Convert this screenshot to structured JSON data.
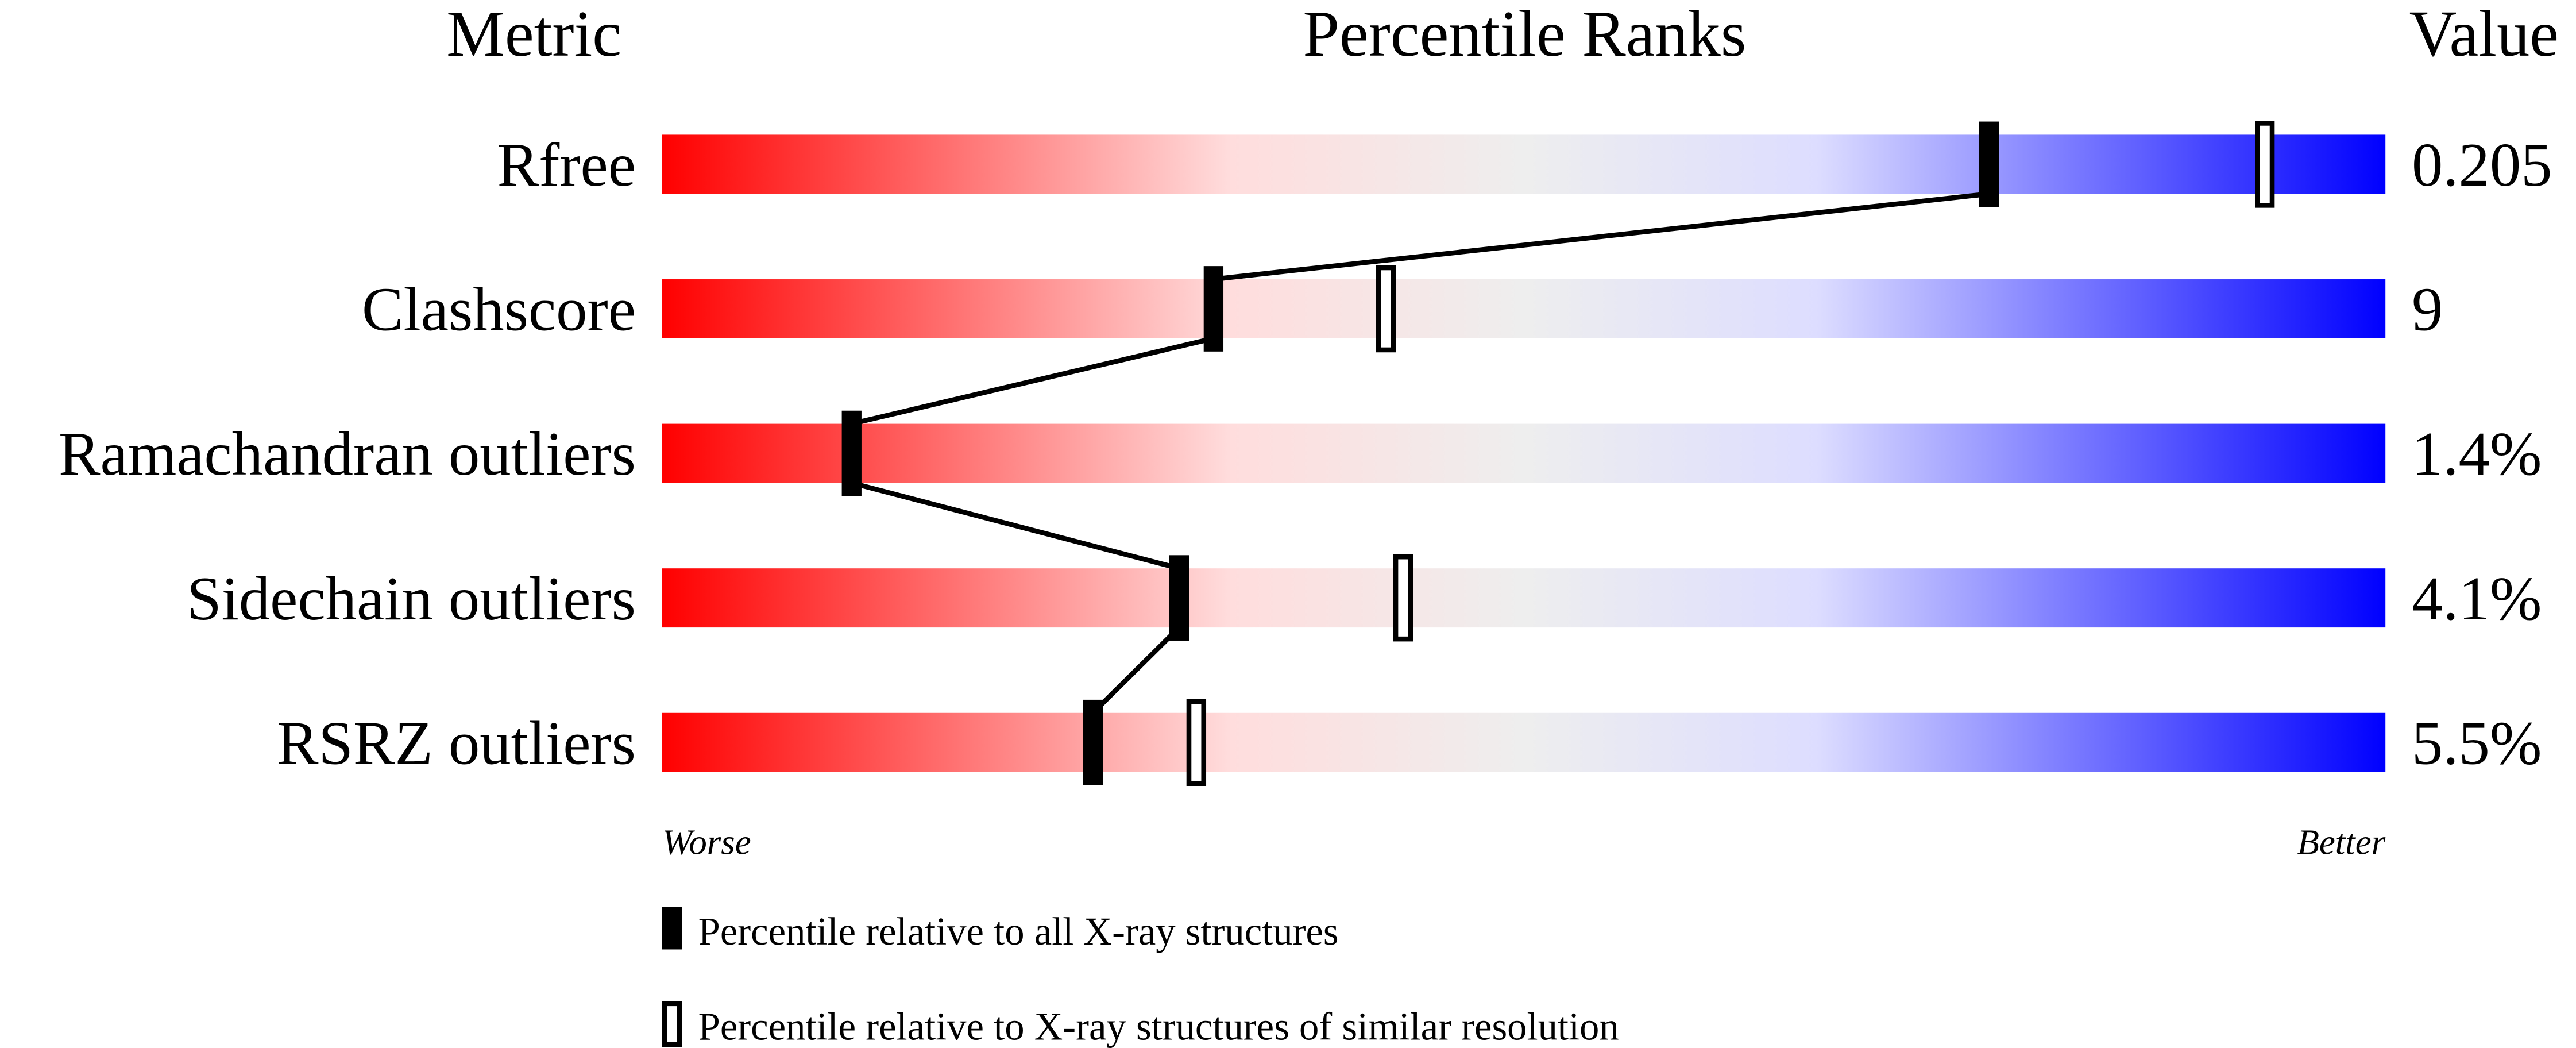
{
  "chart_data": {
    "type": "bar",
    "headers": {
      "metric": "Metric",
      "percentile": "Percentile Ranks",
      "value": "Value"
    },
    "xlim": [
      0,
      100
    ],
    "axis_labels": {
      "left": "Worse",
      "right": "Better"
    },
    "gradient_colors": [
      "#ff0000",
      "#ffdddd",
      "#eeeeee",
      "#ddddff",
      "#0000ff"
    ],
    "rows": [
      {
        "metric": "Rfree",
        "value": "0.205",
        "percentile_all": 77,
        "percentile_similar": 93
      },
      {
        "metric": "Clashscore",
        "value": "9",
        "percentile_all": 32,
        "percentile_similar": 42
      },
      {
        "metric": "Ramachandran outliers",
        "value": "1.4%",
        "percentile_all": 11,
        "percentile_similar": null
      },
      {
        "metric": "Sidechain outliers",
        "value": "4.1%",
        "percentile_all": 30,
        "percentile_similar": 43
      },
      {
        "metric": "RSRZ outliers",
        "value": "5.5%",
        "percentile_all": 25,
        "percentile_similar": 31
      }
    ],
    "legend": [
      {
        "marker": "filled",
        "label": "Percentile relative to all X-ray structures"
      },
      {
        "marker": "open",
        "label": "Percentile relative to X-ray structures of similar resolution"
      }
    ]
  }
}
